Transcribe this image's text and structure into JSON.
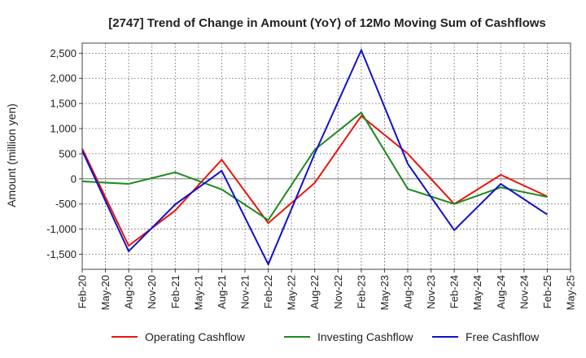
{
  "chart_data": {
    "type": "line",
    "title": "[2747]  Trend of Change in Amount (YoY) of 12Mo Moving Sum of Cashflows",
    "xlabel": "",
    "ylabel": "Amount (million yen)",
    "ylim": [
      -1800,
      2700
    ],
    "yticks": [
      -1500,
      -1000,
      -500,
      0,
      500,
      1000,
      1500,
      2000,
      2500
    ],
    "ytick_labels": [
      "-1,500",
      "-1,000",
      "-500",
      "0",
      "500",
      "1,000",
      "1,500",
      "2,000",
      "2,500"
    ],
    "categories": [
      "Feb-20",
      "May-20",
      "Aug-20",
      "Nov-20",
      "Feb-21",
      "May-21",
      "Aug-21",
      "Nov-21",
      "Feb-22",
      "May-22",
      "Aug-22",
      "Nov-22",
      "Feb-23",
      "May-23",
      "Aug-23",
      "Nov-23",
      "Feb-24",
      "May-24",
      "Aug-24",
      "Nov-24",
      "Feb-25",
      "May-25"
    ],
    "series": [
      {
        "name": "Operating Cashflow",
        "color": "#e8150d",
        "values": [
          600,
          null,
          -1330,
          null,
          -630,
          null,
          380,
          null,
          -880,
          null,
          -80,
          null,
          1250,
          null,
          500,
          null,
          -500,
          null,
          80,
          null,
          -350,
          null
        ]
      },
      {
        "name": "Investing Cashflow",
        "color": "#1e8a1e",
        "values": [
          -50,
          null,
          -100,
          null,
          130,
          null,
          -210,
          null,
          -820,
          null,
          580,
          null,
          1320,
          null,
          -200,
          null,
          -500,
          null,
          -170,
          null,
          -360,
          null
        ]
      },
      {
        "name": "Free Cashflow",
        "color": "#1111cc",
        "values": [
          560,
          null,
          -1440,
          null,
          -510,
          null,
          160,
          null,
          -1700,
          null,
          500,
          null,
          2560,
          null,
          300,
          null,
          -1020,
          null,
          -100,
          null,
          -710,
          null
        ]
      }
    ],
    "legend_position": "bottom"
  }
}
